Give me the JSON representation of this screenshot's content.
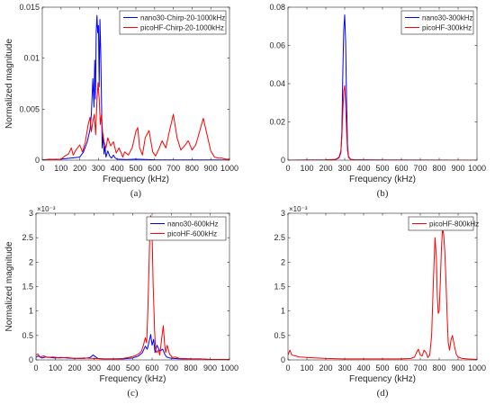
{
  "colors": {
    "nano30": "#0000ff",
    "picoHF": "#ff0000",
    "axis": "#262626"
  },
  "chart_data": [
    {
      "id": "a",
      "type": "line",
      "panel_label": "(a)",
      "xlabel": "Frequency (kHz)",
      "ylabel": "Normalized magnitude",
      "xlim": [
        0,
        1000
      ],
      "ylim": [
        0,
        0.015
      ],
      "xticks": [
        0,
        100,
        200,
        300,
        400,
        500,
        600,
        700,
        800,
        900,
        1000
      ],
      "yticks": [
        0,
        0.005,
        0.01,
        0.015
      ],
      "ytick_labels": [
        "0",
        "0.005",
        "0.01",
        "0.015"
      ],
      "exponent_label": "",
      "legend_position": "top-right",
      "series": [
        {
          "name": "nano30-Chirp-20-1000kHz",
          "color": "#0000ff",
          "x": [
            0,
            20,
            100,
            150,
            200,
            220,
            240,
            255,
            262,
            270,
            276,
            280,
            284,
            288,
            292,
            296,
            300,
            304,
            308,
            312,
            316,
            320,
            325,
            330,
            335,
            340,
            350,
            360,
            370,
            380,
            390,
            400,
            450,
            500,
            600,
            700,
            800,
            900,
            1000
          ],
          "y": [
            0,
            5e-05,
            0.0001,
            0.0002,
            0.0003,
            0.0008,
            0.0018,
            0.003,
            0.0045,
            0.008,
            0.0052,
            0.0098,
            0.006,
            0.0126,
            0.0142,
            0.0125,
            0.0132,
            0.0072,
            0.0138,
            0.0108,
            0.0062,
            0.0012,
            0.0025,
            0.0006,
            0.0014,
            0.0003,
            0.0009,
            0.0004,
            0.0002,
            0.0005,
            0.0002,
            0.0001,
            5e-05,
            0.0001,
            3e-05,
            2e-05,
            2e-05,
            2e-05,
            1e-05
          ]
        },
        {
          "name": "picoHF-Chirp-20-1000kHz",
          "color": "#ff0000",
          "x": [
            0,
            40,
            70,
            100,
            120,
            140,
            155,
            165,
            180,
            200,
            215,
            230,
            245,
            255,
            262,
            270,
            278,
            285,
            292,
            298,
            304,
            310,
            316,
            322,
            330,
            340,
            350,
            365,
            380,
            395,
            410,
            430,
            440,
            460,
            480,
            500,
            510,
            520,
            535,
            550,
            570,
            590,
            605,
            625,
            640,
            660,
            680,
            700,
            720,
            740,
            760,
            780,
            800,
            820,
            840,
            860,
            880,
            900,
            920,
            940,
            960,
            980,
            1000
          ],
          "y": [
            0,
            0.0001,
            5e-05,
            0.0001,
            0.0004,
            0.0006,
            0.0012,
            0.0005,
            0.001,
            0.0015,
            0.0008,
            0.0018,
            0.0035,
            0.0042,
            0.0028,
            0.0038,
            0.0045,
            0.0025,
            0.0058,
            0.0076,
            0.006,
            0.0035,
            0.0045,
            0.0028,
            0.0018,
            0.0012,
            0.0022,
            0.0014,
            0.0018,
            0.0007,
            0.0012,
            0.0003,
            0.0008,
            0.0005,
            0.0012,
            0.0028,
            0.0032,
            0.0012,
            0.0005,
            0.0022,
            0.0029,
            0.0008,
            0.0004,
            0.0012,
            0.0019,
            0.0012,
            0.0029,
            0.0045,
            0.0022,
            0.001,
            0.0014,
            0.0019,
            0.001,
            0.0015,
            0.0028,
            0.0041,
            0.0025,
            0.0009,
            0.0003,
            0.0002,
            0.0002,
            0.0001,
            0.0001
          ]
        }
      ]
    },
    {
      "id": "b",
      "type": "line",
      "panel_label": "(b)",
      "xlabel": "Frequency (kHz)",
      "ylabel": "",
      "xlim": [
        0,
        1000
      ],
      "ylim": [
        0,
        0.08
      ],
      "xticks": [
        0,
        100,
        200,
        300,
        400,
        500,
        600,
        700,
        800,
        900,
        1000
      ],
      "yticks": [
        0,
        0.02,
        0.04,
        0.06,
        0.08
      ],
      "ytick_labels": [
        "0",
        "0.02",
        "0.04",
        "0.06",
        "0.08"
      ],
      "exponent_label": "",
      "legend_position": "top-right",
      "series": [
        {
          "name": "nano30-300kHz",
          "color": "#0000ff",
          "x": [
            0,
            100,
            200,
            250,
            270,
            280,
            285,
            290,
            295,
            300,
            305,
            310,
            315,
            320,
            330,
            350,
            400,
            500,
            1000
          ],
          "y": [
            0,
            5e-05,
            0.0001,
            0.0003,
            0.0012,
            0.004,
            0.015,
            0.045,
            0.068,
            0.076,
            0.062,
            0.03,
            0.008,
            0.002,
            0.0005,
            0.0002,
            0.0001,
            5e-05,
            2e-05
          ],
          "smooth": true
        },
        {
          "name": "picoHF-300kHz",
          "color": "#ff0000",
          "x": [
            0,
            100,
            200,
            250,
            270,
            280,
            285,
            290,
            295,
            300,
            305,
            310,
            315,
            320,
            330,
            350,
            400,
            500,
            1000
          ],
          "y": [
            0,
            5e-05,
            0.0001,
            0.0004,
            0.0015,
            0.005,
            0.012,
            0.025,
            0.036,
            0.039,
            0.03,
            0.015,
            0.005,
            0.0015,
            0.0004,
            0.0002,
            0.0001,
            5e-05,
            2e-05
          ],
          "smooth": true
        }
      ]
    },
    {
      "id": "c",
      "type": "line",
      "panel_label": "(c)",
      "xlabel": "Frequency (kHz)",
      "ylabel": "Normalized magnitude",
      "xlim": [
        0,
        1000
      ],
      "ylim": [
        0,
        3
      ],
      "xticks": [
        0,
        100,
        200,
        300,
        400,
        500,
        600,
        700,
        800,
        900,
        1000
      ],
      "yticks": [
        0,
        0.5,
        1,
        1.5,
        2,
        2.5,
        3
      ],
      "ytick_labels": [
        "0",
        "0.5",
        "1",
        "1.5",
        "2",
        "2.5",
        "3"
      ],
      "exponent_label": "×10⁻³",
      "legend_position": "top-right",
      "series": [
        {
          "name": "nano30-600kHz",
          "color": "#0000ff",
          "x": [
            0,
            10,
            20,
            30,
            50,
            70,
            100,
            130,
            160,
            200,
            250,
            280,
            295,
            305,
            320,
            350,
            400,
            450,
            500,
            530,
            550,
            565,
            575,
            585,
            593,
            600,
            608,
            615,
            625,
            640,
            655,
            665,
            675,
            690,
            710,
            750,
            800,
            850,
            900,
            950,
            1000
          ],
          "y": [
            0.05,
            0.08,
            0.06,
            0.04,
            0.06,
            0.05,
            0.04,
            0.05,
            0.04,
            0.03,
            0.03,
            0.05,
            0.1,
            0.07,
            0.03,
            0.02,
            0.02,
            0.02,
            0.04,
            0.08,
            0.15,
            0.28,
            0.22,
            0.38,
            0.52,
            0.3,
            0.42,
            0.15,
            0.3,
            0.18,
            0.22,
            0.12,
            0.06,
            0.04,
            0.03,
            0.02,
            0.02,
            0.02,
            0.01,
            0.01,
            0.01
          ]
        },
        {
          "name": "picoHF-600kHz",
          "color": "#ff0000",
          "x": [
            0,
            10,
            20,
            40,
            60,
            90,
            120,
            160,
            200,
            250,
            300,
            350,
            400,
            450,
            480,
            510,
            530,
            545,
            555,
            565,
            572,
            578,
            584,
            589,
            593,
            597,
            601,
            605,
            609,
            613,
            618,
            624,
            632,
            640,
            650,
            658,
            664,
            670,
            678,
            690,
            705,
            720,
            740,
            770,
            800,
            850,
            900,
            950,
            1000
          ],
          "y": [
            0.1,
            0.12,
            0.06,
            0.08,
            0.05,
            0.06,
            0.04,
            0.05,
            0.03,
            0.04,
            0.03,
            0.02,
            0.02,
            0.03,
            0.05,
            0.08,
            0.12,
            0.18,
            0.3,
            0.45,
            0.35,
            1.0,
            1.9,
            2.7,
            2.95,
            2.85,
            2.4,
            1.6,
            1.1,
            0.6,
            0.2,
            0.15,
            0.2,
            0.1,
            0.45,
            0.7,
            0.35,
            0.15,
            0.3,
            0.12,
            0.05,
            0.06,
            0.03,
            0.03,
            0.02,
            0.02,
            0.01,
            0.01,
            0.01
          ]
        }
      ]
    },
    {
      "id": "d",
      "type": "line",
      "panel_label": "(d)",
      "xlabel": "Frequency (kHz)",
      "ylabel": "",
      "xlim": [
        0,
        1000
      ],
      "ylim": [
        0,
        3
      ],
      "xticks": [
        0,
        100,
        200,
        300,
        400,
        500,
        600,
        700,
        800,
        900,
        1000
      ],
      "yticks": [
        0,
        0.5,
        1,
        1.5,
        2,
        2.5,
        3
      ],
      "ytick_labels": [
        "0",
        "0.5",
        "1",
        "1.5",
        "2",
        "2.5",
        "3"
      ],
      "exponent_label": "×10⁻³",
      "legend_position": "top-right",
      "series": [
        {
          "name": "picoHF-800kHz",
          "color": "#ff0000",
          "x": [
            0,
            10,
            20,
            40,
            60,
            100,
            150,
            200,
            300,
            400,
            500,
            600,
            650,
            670,
            680,
            690,
            700,
            710,
            720,
            730,
            740,
            750,
            760,
            770,
            778,
            785,
            790,
            795,
            800,
            806,
            812,
            818,
            824,
            830,
            836,
            842,
            848,
            855,
            862,
            870,
            880,
            890,
            900,
            920,
            950,
            1000
          ],
          "y": [
            0.1,
            0.2,
            0.1,
            0.08,
            0.06,
            0.05,
            0.04,
            0.03,
            0.02,
            0.02,
            0.02,
            0.02,
            0.03,
            0.06,
            0.15,
            0.22,
            0.1,
            0.08,
            0.2,
            0.15,
            0.05,
            0.1,
            0.5,
            1.7,
            2.5,
            2.1,
            1.3,
            0.95,
            1.0,
            1.6,
            2.3,
            2.7,
            2.55,
            2.2,
            1.6,
            0.9,
            0.35,
            0.2,
            0.4,
            0.5,
            0.3,
            0.12,
            0.06,
            0.03,
            0.02,
            0.01
          ],
          "smooth": true
        }
      ]
    }
  ]
}
